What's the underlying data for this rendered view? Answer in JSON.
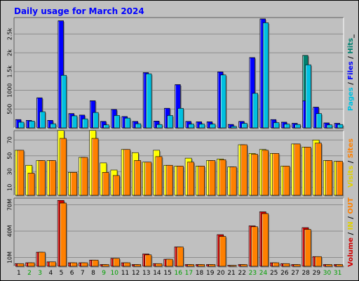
{
  "chart_data": [
    {
      "type": "bar",
      "title": "Daily usage for March 2024",
      "panel": "top",
      "categories": [
        "1",
        "2",
        "3",
        "4",
        "5",
        "6",
        "7",
        "8",
        "9",
        "10",
        "11",
        "12",
        "13",
        "14",
        "15",
        "16",
        "17",
        "18",
        "19",
        "20",
        "21",
        "22",
        "23",
        "24",
        "25",
        "26",
        "27",
        "28",
        "29",
        "30",
        "31"
      ],
      "weekend_days": [
        "2",
        "3",
        "9",
        "10",
        "16",
        "17",
        "23",
        "24",
        "30",
        "31"
      ],
      "ylabel_parts": [
        {
          "text": "Pages",
          "color": "#00c0e0"
        },
        {
          "text": " / ",
          "color": "#000000"
        },
        {
          "text": "Files",
          "color": "#0000ff"
        },
        {
          "text": " / ",
          "color": "#000000"
        },
        {
          "text": "Hits",
          "color": "#00806f"
        },
        {
          "text": "_",
          "color": "#000000"
        }
      ],
      "yticks": [
        {
          "label": "500",
          "value": 500
        },
        {
          "label": "1000",
          "value": 1000
        },
        {
          "label": "1.5k",
          "value": 1500
        },
        {
          "label": "2k",
          "value": 2000
        },
        {
          "label": "2.5k",
          "value": 2500
        }
      ],
      "ylim": [
        0,
        2900
      ],
      "series": [
        {
          "name": "Hits",
          "color": "#00806f",
          "values": [
            220,
            200,
            800,
            200,
            2850,
            380,
            340,
            720,
            170,
            490,
            300,
            170,
            1470,
            180,
            520,
            1150,
            170,
            160,
            160,
            1490,
            90,
            170,
            1870,
            2900,
            220,
            150,
            120,
            1930,
            550,
            130,
            120
          ]
        },
        {
          "name": "Files",
          "color": "#0000ff",
          "values": [
            220,
            200,
            800,
            200,
            2850,
            380,
            340,
            720,
            170,
            490,
            300,
            170,
            1470,
            180,
            520,
            1150,
            170,
            160,
            160,
            1490,
            90,
            170,
            1870,
            2900,
            220,
            150,
            120,
            720,
            550,
            130,
            120
          ]
        },
        {
          "name": "Pages",
          "color": "#00c0e0",
          "values": [
            150,
            180,
            430,
            110,
            1400,
            320,
            240,
            410,
            80,
            330,
            260,
            110,
            1440,
            90,
            330,
            520,
            100,
            100,
            100,
            1410,
            40,
            120,
            920,
            2800,
            140,
            100,
            90,
            1680,
            380,
            80,
            90
          ]
        }
      ]
    },
    {
      "type": "bar",
      "panel": "middle",
      "categories": [
        "1",
        "2",
        "3",
        "4",
        "5",
        "6",
        "7",
        "8",
        "9",
        "10",
        "11",
        "12",
        "13",
        "14",
        "15",
        "16",
        "17",
        "18",
        "19",
        "20",
        "21",
        "22",
        "23",
        "24",
        "25",
        "26",
        "27",
        "28",
        "29",
        "30",
        "31"
      ],
      "ylabel_parts": [
        {
          "text": "Visits",
          "color": "#e0d000"
        },
        {
          "text": " / ",
          "color": "#000000"
        },
        {
          "text": "Sites",
          "color": "#ff8000"
        }
      ],
      "yticks": [
        {
          "label": "10",
          "value": 10
        },
        {
          "label": "30",
          "value": 30
        },
        {
          "label": "50",
          "value": 50
        },
        {
          "label": "70",
          "value": 70
        }
      ],
      "ylim": [
        0,
        80
      ],
      "series": [
        {
          "name": "Visits",
          "color": "#ffff00",
          "values": [
            57,
            38,
            44,
            44,
            82,
            29,
            48,
            82,
            41,
            32,
            58,
            54,
            42,
            57,
            38,
            37,
            47,
            37,
            44,
            46,
            36,
            64,
            53,
            58,
            53,
            37,
            65,
            61,
            70,
            44,
            43
          ]
        },
        {
          "name": "Sites",
          "color": "#ff8000",
          "values": [
            57,
            28,
            44,
            44,
            72,
            29,
            48,
            72,
            29,
            25,
            58,
            44,
            42,
            49,
            38,
            37,
            42,
            37,
            44,
            45,
            36,
            64,
            52,
            57,
            53,
            37,
            65,
            61,
            66,
            44,
            43
          ]
        }
      ]
    },
    {
      "type": "bar",
      "panel": "bottom",
      "categories": [
        "1",
        "2",
        "3",
        "4",
        "5",
        "6",
        "7",
        "8",
        "9",
        "10",
        "11",
        "12",
        "13",
        "14",
        "15",
        "16",
        "17",
        "18",
        "19",
        "20",
        "21",
        "22",
        "23",
        "24",
        "25",
        "26",
        "27",
        "28",
        "29",
        "30",
        "31"
      ],
      "ylabel_parts": [
        {
          "text": "Volume",
          "color": "#d00000"
        },
        {
          "text": " / ",
          "color": "#000000"
        },
        {
          "text": "IN",
          "color": "#e0d000"
        },
        {
          "text": " / ",
          "color": "#000000"
        },
        {
          "text": "OUT",
          "color": "#ff8000"
        }
      ],
      "yticks": [
        {
          "label": "10M",
          "value": 10
        },
        {
          "label": "40M",
          "value": 40
        },
        {
          "label": "70M",
          "value": 70
        }
      ],
      "ylim": [
        0,
        76
      ],
      "series": [
        {
          "name": "Volume",
          "color": "#d00000",
          "values": [
            3,
            4,
            16,
            5,
            75,
            4,
            4,
            7,
            2,
            9,
            4,
            2,
            14,
            3,
            8,
            22,
            2,
            2,
            2,
            36,
            1,
            2,
            46,
            62,
            4,
            3,
            2,
            44,
            11,
            2,
            2
          ]
        },
        {
          "name": "OUT",
          "color": "#ff8000",
          "values": [
            3,
            4,
            16,
            5,
            72,
            4,
            4,
            7,
            2,
            9,
            4,
            2,
            13,
            3,
            8,
            22,
            2,
            2,
            2,
            34,
            1,
            2,
            45,
            60,
            4,
            3,
            2,
            42,
            11,
            2,
            2
          ]
        }
      ]
    }
  ]
}
